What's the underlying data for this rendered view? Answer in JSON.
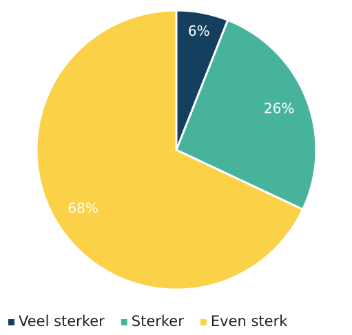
{
  "chart_data": {
    "type": "pie",
    "categories": [
      "Veel sterker",
      "Sterker",
      "Even sterk"
    ],
    "values": [
      6,
      26,
      68
    ],
    "value_labels": [
      "6%",
      "26%",
      "68%"
    ],
    "colors": [
      "#143f5e",
      "#47b39d",
      "#fbd148"
    ],
    "legend": "bottom"
  }
}
